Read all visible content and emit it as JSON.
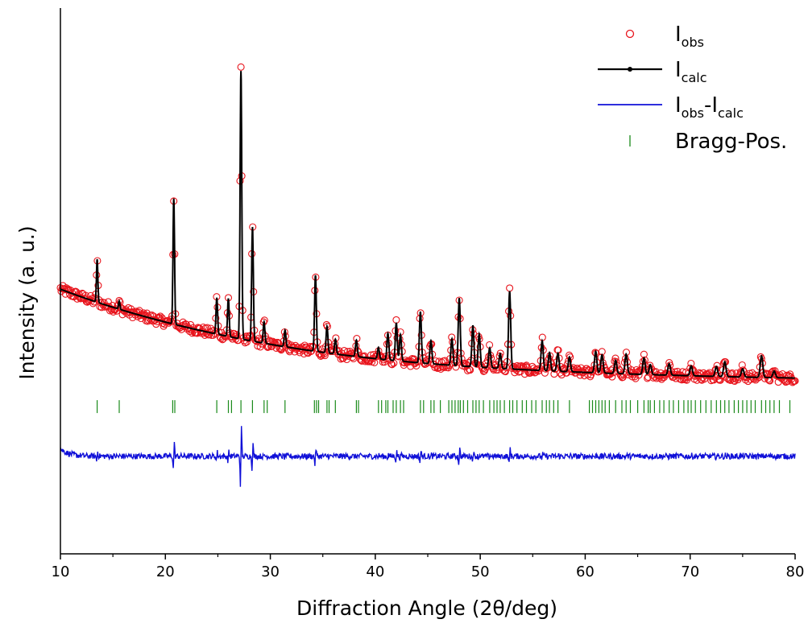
{
  "chart_data": {
    "type": "line",
    "xlabel": "Diffraction Angle (2θ/deg)",
    "ylabel": "Intensity (a. u.)",
    "xlim": [
      10,
      80
    ],
    "ylim": [
      -3,
      30
    ],
    "xticks": [
      10,
      20,
      30,
      40,
      50,
      60,
      70,
      80
    ],
    "show_y_ticks": false,
    "grid": false,
    "legend_position": "top-right",
    "background_start": 13.0,
    "background_end": 7.4,
    "difference_offset": 2.9,
    "bragg_row": 5.9,
    "peaks": [
      {
        "x": 13.5,
        "h": 2.6
      },
      {
        "x": 15.6,
        "h": 0.5
      },
      {
        "x": 20.8,
        "h": 7.6
      },
      {
        "x": 24.9,
        "h": 2.2
      },
      {
        "x": 26.0,
        "h": 2.3
      },
      {
        "x": 27.2,
        "h": 16.2
      },
      {
        "x": 28.3,
        "h": 6.9
      },
      {
        "x": 29.4,
        "h": 1.3
      },
      {
        "x": 31.4,
        "h": 1.0
      },
      {
        "x": 34.3,
        "h": 4.6
      },
      {
        "x": 35.4,
        "h": 1.6
      },
      {
        "x": 36.2,
        "h": 0.9
      },
      {
        "x": 38.2,
        "h": 1.0
      },
      {
        "x": 40.3,
        "h": 0.7
      },
      {
        "x": 41.2,
        "h": 1.6
      },
      {
        "x": 42.0,
        "h": 2.3
      },
      {
        "x": 42.4,
        "h": 1.6
      },
      {
        "x": 44.3,
        "h": 3.1
      },
      {
        "x": 45.3,
        "h": 1.4
      },
      {
        "x": 47.3,
        "h": 1.6
      },
      {
        "x": 48.0,
        "h": 4.1
      },
      {
        "x": 49.3,
        "h": 2.5
      },
      {
        "x": 49.9,
        "h": 2.0
      },
      {
        "x": 50.9,
        "h": 1.2
      },
      {
        "x": 51.9,
        "h": 0.9
      },
      {
        "x": 52.8,
        "h": 4.7
      },
      {
        "x": 55.9,
        "h": 1.8
      },
      {
        "x": 56.6,
        "h": 1.1
      },
      {
        "x": 57.4,
        "h": 1.1
      },
      {
        "x": 58.5,
        "h": 0.9
      },
      {
        "x": 61.0,
        "h": 1.3
      },
      {
        "x": 61.6,
        "h": 1.1
      },
      {
        "x": 62.9,
        "h": 0.8
      },
      {
        "x": 63.9,
        "h": 1.2
      },
      {
        "x": 65.6,
        "h": 1.0
      },
      {
        "x": 66.2,
        "h": 0.6
      },
      {
        "x": 68.0,
        "h": 0.7
      },
      {
        "x": 70.1,
        "h": 0.6
      },
      {
        "x": 72.5,
        "h": 0.6
      },
      {
        "x": 73.3,
        "h": 0.9
      },
      {
        "x": 75.0,
        "h": 0.5
      },
      {
        "x": 76.8,
        "h": 1.3
      },
      {
        "x": 78.0,
        "h": 0.4
      }
    ],
    "bragg_positions": [
      13.5,
      15.6,
      20.7,
      20.9,
      24.9,
      26.0,
      26.3,
      27.2,
      28.3,
      29.4,
      29.7,
      31.4,
      34.2,
      34.4,
      34.6,
      35.4,
      35.6,
      36.2,
      38.2,
      38.4,
      40.3,
      40.6,
      41.0,
      41.2,
      41.7,
      42.0,
      42.4,
      42.7,
      44.3,
      44.6,
      45.3,
      45.6,
      46.2,
      47.0,
      47.3,
      47.6,
      47.9,
      48.1,
      48.4,
      48.8,
      49.3,
      49.6,
      49.9,
      50.3,
      50.9,
      51.3,
      51.6,
      51.9,
      52.3,
      52.8,
      53.1,
      53.5,
      54.0,
      54.4,
      54.9,
      55.3,
      55.9,
      56.3,
      56.6,
      57.0,
      57.4,
      58.5,
      60.4,
      60.7,
      61.0,
      61.3,
      61.6,
      61.9,
      62.3,
      62.9,
      63.5,
      63.9,
      64.3,
      65.0,
      65.6,
      66.0,
      66.2,
      66.6,
      67.1,
      67.5,
      68.0,
      68.4,
      68.9,
      69.4,
      69.8,
      70.1,
      70.5,
      71.0,
      71.5,
      72.0,
      72.5,
      72.9,
      73.3,
      73.7,
      74.2,
      74.6,
      75.0,
      75.4,
      75.8,
      76.2,
      76.8,
      77.2,
      77.6,
      78.0,
      78.5,
      79.5
    ],
    "legend": [
      {
        "label": "I",
        "sub": "obs",
        "marker": "circle",
        "color": "#e8141c"
      },
      {
        "label": "I",
        "sub": "calc",
        "marker": "line-dot",
        "color": "#000000"
      },
      {
        "label": "I",
        "sub": "obs",
        "label2": "-I",
        "sub2": "calc",
        "marker": "line",
        "color": "#1010d8"
      },
      {
        "label": "Bragg-Pos.",
        "marker": "tick",
        "color": "#1a8a1a"
      }
    ],
    "series": [
      {
        "name": "Iobs",
        "color": "#e8141c",
        "style": "open-circle"
      },
      {
        "name": "Icalc",
        "color": "#000000",
        "style": "line"
      },
      {
        "name": "Iobs-Icalc",
        "color": "#1010d8",
        "style": "line"
      },
      {
        "name": "Bragg-Pos.",
        "color": "#1a8a1a",
        "style": "tick"
      }
    ]
  }
}
